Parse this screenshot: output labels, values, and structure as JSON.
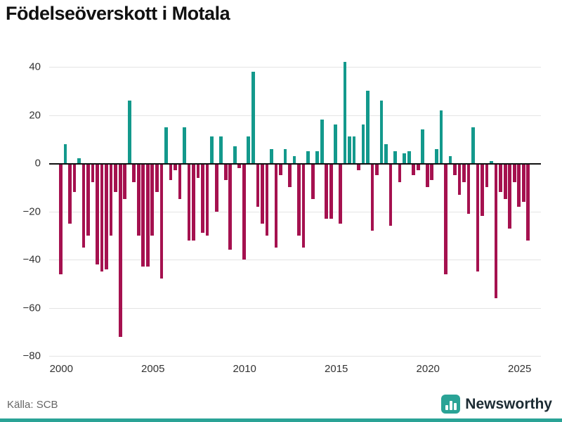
{
  "title": "Födelseöverskott i Motala",
  "source": "Källa: SCB",
  "branding": {
    "name": "Newsworthy",
    "icon": "bar-chart-logo"
  },
  "colors": {
    "positive": "#13998c",
    "negative": "#a5114f",
    "brand": "#2aa396",
    "grid": "#e4e4e4",
    "zero_line": "#111111",
    "axis_text": "#333333",
    "source_text": "#666666",
    "logo_text": "#1c2b33"
  },
  "chart_data": {
    "type": "bar",
    "title": "Födelseöverskott i Motala",
    "frequency": "quarterly",
    "start_year": 2000,
    "xlabel": "",
    "ylabel": "",
    "ylim": [
      -80,
      45
    ],
    "yticks": [
      40,
      20,
      0,
      -20,
      -40,
      -60,
      -80
    ],
    "xticks": [
      2000,
      2005,
      2010,
      2015,
      2020,
      2025
    ],
    "grid": true,
    "legend": "none",
    "values": [
      -46,
      8,
      -25,
      -12,
      2,
      -35,
      -30,
      -8,
      -42,
      -45,
      -44,
      -30,
      -12,
      -72,
      -15,
      26,
      -8,
      -30,
      -43,
      -43,
      -30,
      -12,
      -48,
      15,
      -7,
      -3,
      -15,
      15,
      -32,
      -32,
      -6,
      -29,
      -30,
      11,
      -20,
      11,
      -7,
      -36,
      7,
      -2,
      -40,
      11,
      38,
      -18,
      -25,
      -30,
      6,
      -35,
      -5,
      6,
      -10,
      3,
      -30,
      -35,
      5,
      -15,
      5,
      18,
      -23,
      -23,
      16,
      -25,
      42,
      11,
      11,
      -3,
      16,
      30,
      -28,
      -5,
      26,
      8,
      -26,
      5,
      -8,
      4,
      5,
      -5,
      -3,
      14,
      -10,
      -7,
      6,
      22,
      -46,
      3,
      -5,
      -13,
      -8,
      -21,
      15,
      -45,
      -22,
      -10,
      1,
      -56,
      -12,
      -15,
      -27,
      -8,
      -18,
      -16,
      -32
    ]
  }
}
